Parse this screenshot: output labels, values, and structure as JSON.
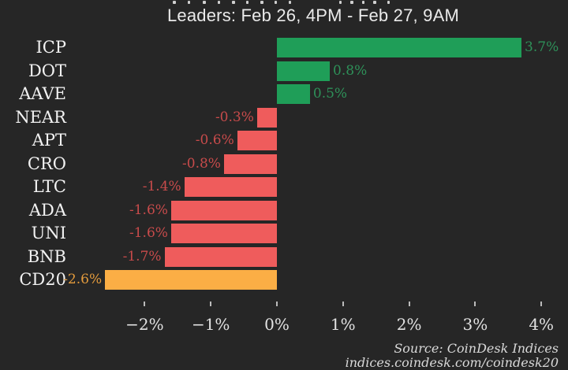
{
  "window": {
    "background": "#262626"
  },
  "header": {
    "title": "Leaders: Feb 26, 4PM - Feb 27, 9AM"
  },
  "chart_data": {
    "type": "bar",
    "orientation": "horizontal",
    "title": "Leaders: Feb 26, 4PM - Feb 27, 9AM",
    "categories": [
      "ICP",
      "DOT",
      "AAVE",
      "NEAR",
      "APT",
      "CRO",
      "LTC",
      "ADA",
      "UNI",
      "BNB",
      "CD20"
    ],
    "values": [
      3.7,
      0.8,
      0.5,
      -0.3,
      -0.6,
      -0.8,
      -1.4,
      -1.6,
      -1.6,
      -1.7,
      -2.6
    ],
    "value_labels": [
      "3.7%",
      "0.8%",
      "0.5%",
      "-0.3%",
      "-0.6%",
      "-0.8%",
      "-1.4%",
      "-1.6%",
      "-1.6%",
      "-1.7%",
      "-2.6%"
    ],
    "highlight_category": "CD20",
    "xlabel": "",
    "ylabel": "",
    "xlim": [
      -2.7,
      4.4
    ],
    "grid": false,
    "legend": false,
    "x_ticks": [
      {
        "value": -2,
        "label": "−2%"
      },
      {
        "value": -1,
        "label": "−1%"
      },
      {
        "value": 0,
        "label": "0%"
      },
      {
        "value": 1,
        "label": "1%"
      },
      {
        "value": 2,
        "label": "2%"
      },
      {
        "value": 3,
        "label": "3%"
      },
      {
        "value": 4,
        "label": "4%"
      }
    ]
  },
  "colors": {
    "background": "#262626",
    "positive_bar": "#1f9e58",
    "negative_bar": "#ef5c5c",
    "highlight_bar": "#fbae45",
    "positive_label": "#2e9159",
    "negative_label": "#c84b4b",
    "highlight_label": "#e29a3c",
    "category_text": "#f2f2f2",
    "axis_text": "#e2e2e2",
    "title_text": "#eaeaea",
    "source_text": "#d9d9d9"
  },
  "footer": {
    "source_line1": "Source: CoinDesk Indices",
    "source_line2": "indices.coindesk.com/coindesk20"
  }
}
